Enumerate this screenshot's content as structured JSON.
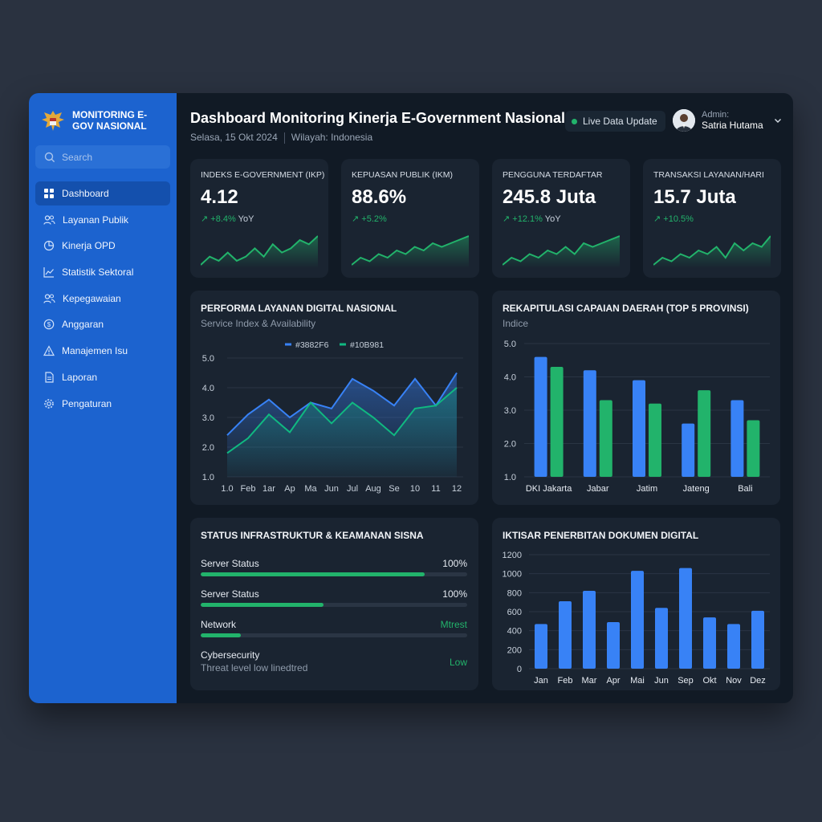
{
  "sidebar": {
    "brand": "MONITORING E-GOV NASIONAL",
    "search_placeholder": "Search",
    "items": [
      {
        "label": "Dashboard",
        "icon": "grid-icon"
      },
      {
        "label": "Layanan Publik",
        "icon": "users-icon"
      },
      {
        "label": "Kinerja OPD",
        "icon": "pie-chart-icon"
      },
      {
        "label": "Statistik Sektoral",
        "icon": "line-chart-icon"
      },
      {
        "label": "Kepegawaian",
        "icon": "people-icon"
      },
      {
        "label": "Anggaran",
        "icon": "dollar-icon"
      },
      {
        "label": "Manajemen Isu",
        "icon": "alert-icon"
      },
      {
        "label": "Laporan",
        "icon": "document-icon"
      },
      {
        "label": "Pengaturan",
        "icon": "gear-icon"
      }
    ]
  },
  "header": {
    "title": "Dashboard Monitoring Kinerja E-Government Nasional",
    "date": "Selasa, 15 Okt 2024",
    "region": "Wilayah: Indonesia",
    "live_label": "Live Data Update",
    "user_role": "Admin:",
    "user_name": "Satria Hutama"
  },
  "stats": [
    {
      "label": "INDEKS E-GOVERNMENT (IKP)",
      "value": "4.12",
      "change": "↗ +8.4%",
      "suffix": "YoY",
      "spark": [
        3,
        5,
        4,
        6,
        4,
        5,
        7,
        5,
        8,
        6,
        7,
        9,
        8,
        10
      ]
    },
    {
      "label": "KEPUASAN PUBLIK (IKM)",
      "value": "88.6%",
      "change": "↗ +5.2%",
      "suffix": "",
      "spark": [
        2,
        4,
        3,
        5,
        4,
        6,
        5,
        7,
        6,
        8,
        7,
        8,
        9,
        10
      ]
    },
    {
      "label": "PENGGUNA TERDAFTAR",
      "value": "245.8 Juta",
      "change": "↗ +12.1%",
      "suffix": "YoY",
      "spark": [
        3,
        5,
        4,
        6,
        5,
        7,
        6,
        8,
        6,
        9,
        8,
        9,
        10,
        11
      ]
    },
    {
      "label": "TRANSAKSI LAYANAN/HARI",
      "value": "15.7 Juta",
      "change": "↗ +10.5%",
      "suffix": "",
      "spark": [
        2,
        4,
        3,
        5,
        4,
        6,
        5,
        7,
        4,
        8,
        6,
        8,
        7,
        10
      ]
    }
  ],
  "chart_data": [
    {
      "type": "area",
      "title": "PERFORMA LAYANAN DIGITAL NASIONAL",
      "subtitle": "Service Index & Availability",
      "categories": [
        "1.0",
        "Feb",
        "1ar",
        "Ap",
        "Ma",
        "Jun",
        "Jul",
        "Aug",
        "Se",
        "10",
        "11",
        "12"
      ],
      "series": [
        {
          "name": "#3882F6",
          "color": "#3882F6",
          "values": [
            2.4,
            3.1,
            3.6,
            3.0,
            3.5,
            3.3,
            4.3,
            3.9,
            3.4,
            4.3,
            3.4,
            4.5
          ]
        },
        {
          "name": "#10B981",
          "color": "#10B981",
          "values": [
            1.8,
            2.3,
            3.1,
            2.5,
            3.5,
            2.8,
            3.5,
            3.0,
            2.4,
            3.3,
            3.4,
            4.0
          ]
        }
      ],
      "yticks": [
        "5.0",
        "4.0",
        "3.0",
        "2.0",
        "1.0"
      ],
      "ylim": [
        1,
        5
      ],
      "legend": "top-center"
    },
    {
      "type": "bar",
      "title": "REKAPITULASI CAPAIAN DAERAH (TOP 5 PROVINSI)",
      "subtitle": "Indice",
      "categories": [
        "DKI Jakarta",
        "Jabar",
        "Jatim",
        "Jateng",
        "Bali"
      ],
      "series": [
        {
          "color": "#3882F6",
          "values": [
            4.6,
            4.2,
            3.9,
            2.6,
            3.3
          ]
        },
        {
          "color": "#22B36B",
          "values": [
            4.3,
            3.3,
            3.2,
            3.6,
            2.7
          ]
        }
      ],
      "yticks": [
        "5.0",
        "4.0",
        "3.0",
        "2.0",
        "1.0"
      ],
      "ylim": [
        1,
        5
      ]
    },
    {
      "type": "bar",
      "title": "IKTISAR PENERBITAN DOKUMEN DIGITAL",
      "categories": [
        "Jan",
        "Feb",
        "Mar",
        "Apr",
        "Mai",
        "Jun",
        "Sep",
        "Okt",
        "Nov",
        "Dez"
      ],
      "values": [
        470,
        710,
        820,
        490,
        1030,
        640,
        1060,
        540,
        470,
        610
      ],
      "color": "#3882F6",
      "yticks": [
        "1200",
        "1000",
        "800",
        "600",
        "400",
        "200",
        "0"
      ],
      "ylim": [
        0,
        1200
      ]
    }
  ],
  "infra": {
    "title": "STATUS INFRASTRUKTUR & KEAMANAN SISNA",
    "rows": [
      {
        "label": "Server Status",
        "value": "100%",
        "progress": 0.84
      },
      {
        "label": "Server Status",
        "value": "100%",
        "progress": 0.46
      },
      {
        "label": "Network",
        "value": "Mtrest",
        "progress": 0.15
      }
    ],
    "security_label": "Cybersecurity",
    "security_note": "Threat level low linedtred",
    "security_value": "Low"
  },
  "colors": {
    "accent": "#1C63CF",
    "blue": "#3882F6",
    "green": "#22B36B",
    "panel": "#1A2431"
  }
}
